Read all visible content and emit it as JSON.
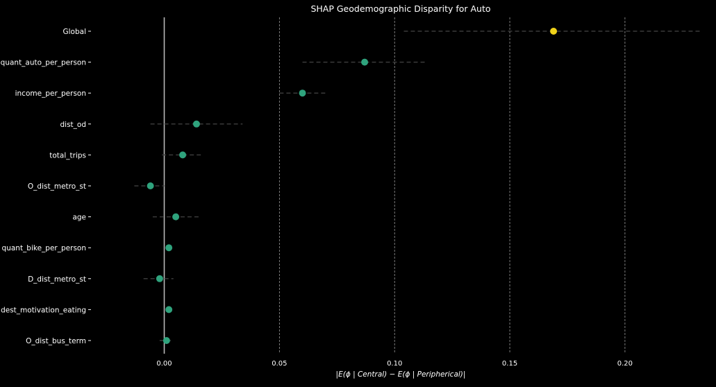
{
  "chart_data": {
    "type": "scatter",
    "title": "SHAP Geodemographic Disparity for Auto",
    "xlabel": "|E(ϕ | Central) − E(ϕ | Peripherical)|",
    "ylabel": "",
    "xlim": [
      -0.03,
      0.235
    ],
    "xticks": [
      0.0,
      0.05,
      0.1,
      0.15,
      0.2
    ],
    "xtick_labels": [
      "0.00",
      "0.05",
      "0.10",
      "0.15",
      "0.20"
    ],
    "grid": "vertical dashed",
    "points": [
      {
        "label": "Global",
        "value": 0.169,
        "ci": [
          0.104,
          0.233
        ],
        "highlight": true
      },
      {
        "label": "quant_auto_per_person",
        "value": 0.087,
        "ci": [
          0.06,
          0.114
        ],
        "highlight": false
      },
      {
        "label": "income_per_person",
        "value": 0.06,
        "ci": [
          0.05,
          0.07
        ],
        "highlight": false
      },
      {
        "label": "dist_od",
        "value": 0.014,
        "ci": [
          -0.006,
          0.034
        ],
        "highlight": false
      },
      {
        "label": "total_trips",
        "value": 0.008,
        "ci": [
          -0.001,
          0.017
        ],
        "highlight": false
      },
      {
        "label": "O_dist_metro_st",
        "value": -0.006,
        "ci": [
          -0.013,
          0.0
        ],
        "highlight": false
      },
      {
        "label": "age",
        "value": 0.005,
        "ci": [
          -0.005,
          0.015
        ],
        "highlight": false
      },
      {
        "label": "quant_bike_per_person",
        "value": 0.002,
        "ci": [
          0.002,
          0.002
        ],
        "highlight": false
      },
      {
        "label": "D_dist_metro_st",
        "value": -0.002,
        "ci": [
          -0.009,
          0.004
        ],
        "highlight": false
      },
      {
        "label": "dest_motivation_eating",
        "value": 0.002,
        "ci": [
          0.002,
          0.002
        ],
        "highlight": false
      },
      {
        "label": "O_dist_bus_term",
        "value": 0.001,
        "ci": [
          -0.002,
          0.004
        ],
        "highlight": false
      }
    ]
  },
  "colors": {
    "background": "#000000",
    "text": "#ffffff",
    "point": "#2fa37d",
    "highlight_point": "#f0d21a",
    "ci_line": "#3a3a3a",
    "grid": "#9a9a9a",
    "zero_line": "#b8b8b8"
  }
}
